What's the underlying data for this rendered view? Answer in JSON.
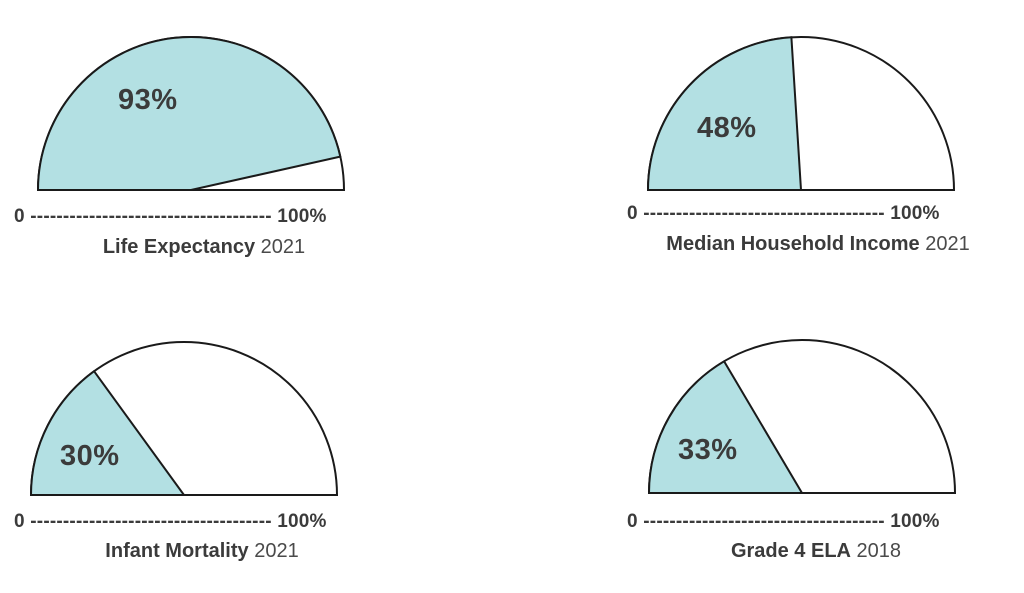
{
  "colors": {
    "fill": "#b3e0e3",
    "stroke": "#1a1a1a",
    "empty": "#ffffff"
  },
  "chart_data": [
    {
      "type": "gauge",
      "value": 93,
      "range": [
        0,
        100
      ],
      "value_label": "93%",
      "min_label": "0",
      "max_label": "100%",
      "title": "Life Expectancy",
      "year": "2021"
    },
    {
      "type": "gauge",
      "value": 48,
      "range": [
        0,
        100
      ],
      "value_label": "48%",
      "min_label": "0",
      "max_label": "100%",
      "title": "Median Household Income",
      "year": "2021"
    },
    {
      "type": "gauge",
      "value": 30,
      "range": [
        0,
        100
      ],
      "value_label": "30%",
      "min_label": "0",
      "max_label": "100%",
      "title": "Infant Mortality",
      "year": "2021"
    },
    {
      "type": "gauge",
      "value": 33,
      "range": [
        0,
        100
      ],
      "value_label": "33%",
      "min_label": "0",
      "max_label": "100%",
      "title": "Grade 4 ELA",
      "year": "2018"
    }
  ]
}
